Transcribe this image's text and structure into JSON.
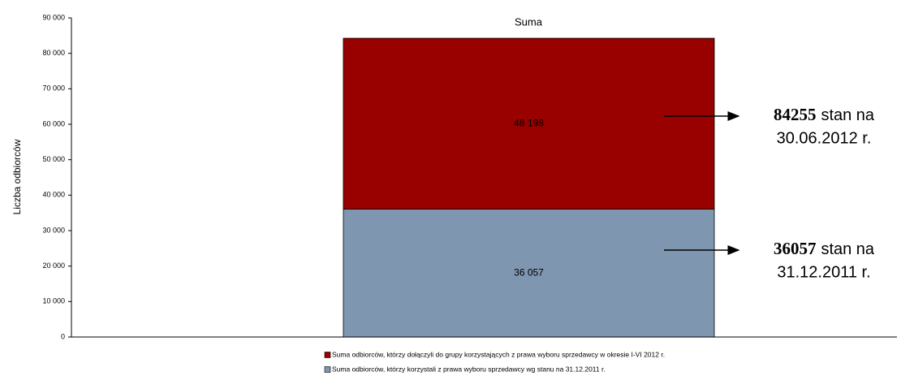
{
  "chart_data": {
    "type": "stacked_bar",
    "categories": [
      "Suma"
    ],
    "y_label": "Liczba odbiorców",
    "ylim": [
      0,
      90000
    ],
    "yticks": [
      0,
      {
        "value": 10000,
        "label": "10 000"
      },
      {
        "value": 20000,
        "label": "20 000"
      },
      {
        "value": 30000,
        "label": "30 000"
      },
      {
        "value": 40000,
        "label": "40 000"
      },
      {
        "value": 50000,
        "label": "50 000"
      },
      {
        "value": 60000,
        "label": "60 000"
      },
      {
        "value": 70000,
        "label": "70 000"
      },
      {
        "value": 80000,
        "label": "80 000"
      },
      {
        "value": 90000,
        "label": "90 000"
      }
    ],
    "series": [
      {
        "name": "Suma odbiorców, którzy korzystali z prawa wyboru sprzedawcy wg stanu na 31.12.2011 r.",
        "color": "#7f96b0",
        "values": [
          36057
        ],
        "value_labels": [
          "36 057"
        ]
      },
      {
        "name": "Suma odbiorców, którzy dołączyli do grupy korzystających z prawa wyboru sprzedawcy w okresie I-VI 2012 r.",
        "color": "#990000",
        "values": [
          48198
        ],
        "value_labels": [
          "48 198"
        ]
      }
    ],
    "annotations": [
      {
        "number": "84255",
        "text": "stan na",
        "date": "30.06.2012 r."
      },
      {
        "number": "36057",
        "text": "stan na",
        "date": "31.12.2011 r."
      }
    ]
  }
}
